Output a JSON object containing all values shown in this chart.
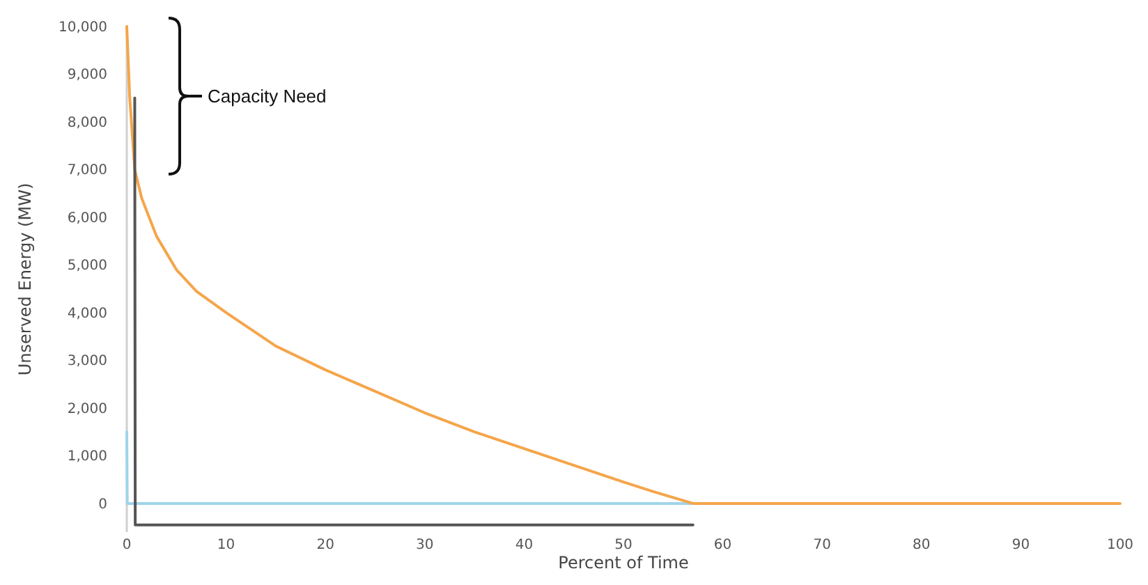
{
  "chart_data": {
    "type": "line",
    "xlabel": "Percent of Time",
    "ylabel": "Unserved Energy (MW)",
    "xlim": [
      0,
      100
    ],
    "ylim": [
      -600,
      10000
    ],
    "xticks": [
      0,
      10,
      20,
      30,
      40,
      50,
      60,
      70,
      80,
      90,
      100
    ],
    "yticks": [
      0,
      {
        "value": 1000,
        "label": "1,000"
      },
      {
        "value": 2000,
        "label": "2,000"
      },
      {
        "value": 3000,
        "label": "3,000"
      },
      {
        "value": 4000,
        "label": "4,000"
      },
      {
        "value": 5000,
        "label": "5,000"
      },
      {
        "value": 6000,
        "label": "6,000"
      },
      {
        "value": 7000,
        "label": "7,000"
      },
      {
        "value": 8000,
        "label": "8,000"
      },
      {
        "value": 9000,
        "label": "9,000"
      },
      {
        "value": 10000,
        "label": "10,000"
      }
    ],
    "grid": false,
    "marker": "none",
    "line_style": "solid",
    "annotations": [
      "Capacity Need"
    ],
    "series": [
      {
        "color": "#9fd4ea",
        "x": [
          0,
          0.05,
          57
        ],
        "values": [
          1500,
          0,
          0
        ]
      },
      {
        "color": "#f5a54a",
        "x": [
          0,
          0.3,
          0.8,
          1.5,
          3,
          5,
          7,
          10,
          15,
          20,
          25,
          30,
          35,
          40,
          45,
          50,
          53,
          57,
          100
        ],
        "values": [
          10000,
          8500,
          7000,
          6400,
          5600,
          4900,
          4450,
          4000,
          3300,
          2800,
          2350,
          1900,
          1500,
          1150,
          800,
          450,
          250,
          0,
          0
        ]
      },
      {
        "color": "#555555",
        "x": [
          0.8,
          0.85,
          57
        ],
        "values": [
          8500,
          -450,
          -450
        ]
      }
    ]
  }
}
